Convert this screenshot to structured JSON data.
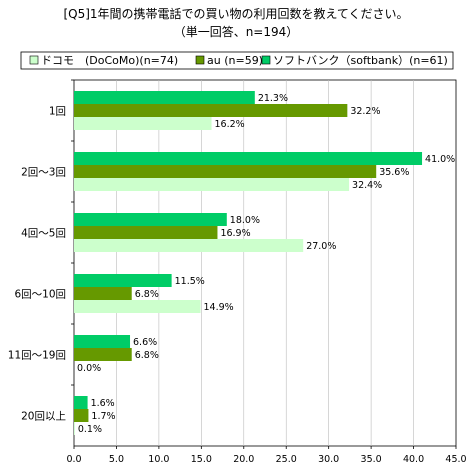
{
  "chart_data": {
    "type": "bar",
    "orientation": "horizontal",
    "title": "[Q5]1年間の携帯電話での買い物の利用回数を教えてください。",
    "subtitle": "（単一回答、n=194）",
    "categories": [
      "1回",
      "2回～3回",
      "4回～5回",
      "6回～10回",
      "11回～19回",
      "20回以上"
    ],
    "series": [
      {
        "name": "ソフトバンク（softbank）(n=61)",
        "color": "#00cc66",
        "values": [
          21.3,
          41.0,
          18.0,
          11.5,
          6.6,
          1.6
        ]
      },
      {
        "name": "au (n=59)",
        "color": "#669900",
        "values": [
          32.2,
          35.6,
          16.9,
          6.8,
          6.8,
          1.7
        ]
      },
      {
        "name": "ドコモ　(DoCoMo)(n=74)",
        "color": "#ccffcc",
        "values": [
          16.2,
          32.4,
          27.0,
          14.9,
          0.0,
          0.1
        ]
      }
    ],
    "legend_order": [
      2,
      1,
      0
    ],
    "value_labels": [
      [
        "21.3%",
        "41.0%",
        "18.0%",
        "11.5%",
        "6.6%",
        "1.6%"
      ],
      [
        "32.2%",
        "35.6%",
        "16.9%",
        "6.8%",
        "6.8%",
        "1.7%"
      ],
      [
        "16.2%",
        "32.4%",
        "27.0%",
        "14.9%",
        "0.0%",
        "0.1%"
      ]
    ],
    "xlim": [
      0,
      45
    ],
    "xticks": [
      "0.0",
      "5.0",
      "10.0",
      "15.0",
      "20.0",
      "25.0",
      "30.0",
      "35.0",
      "40.0",
      "45.0"
    ],
    "legend_position": "top",
    "grid": true
  }
}
